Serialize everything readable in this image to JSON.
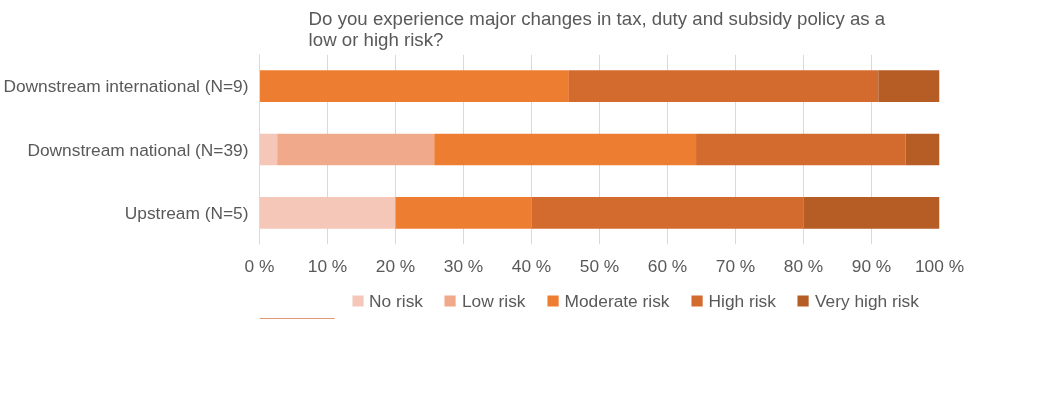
{
  "chart_data": {
    "type": "bar",
    "orientation": "horizontal",
    "stacked": true,
    "title": "Do you experience major changes in tax, duty and subsidy policy  as a low or high risk?",
    "categories": [
      "Downstream international (N=9)",
      "Downstream national (N=39)",
      "Upstream (N=5)"
    ],
    "series": [
      {
        "name": "No risk",
        "color": "#f4c7b8",
        "values": [
          0,
          2.6,
          20
        ]
      },
      {
        "name": "Low risk",
        "color": "#f1a98b",
        "values": [
          0,
          23.1,
          0
        ]
      },
      {
        "name": "Moderate risk",
        "color": "#ed7d31",
        "values": [
          45.5,
          38.5,
          20
        ]
      },
      {
        "name": "High risk",
        "color": "#d46b2e",
        "values": [
          45.5,
          30.8,
          40
        ]
      },
      {
        "name": "Very high risk",
        "color": "#b65d25",
        "values": [
          9,
          5.1,
          20
        ]
      }
    ],
    "xlim": [
      0,
      100
    ],
    "xticks": [
      {
        "value": 0,
        "label": "0 %"
      },
      {
        "value": 10,
        "label": "10 %"
      },
      {
        "value": 20,
        "label": "20 %"
      },
      {
        "value": 30,
        "label": "30 %"
      },
      {
        "value": 40,
        "label": "40 %"
      },
      {
        "value": 50,
        "label": "50 %"
      },
      {
        "value": 60,
        "label": "60 %"
      },
      {
        "value": 70,
        "label": "70 %"
      },
      {
        "value": 80,
        "label": "80 %"
      },
      {
        "value": 90,
        "label": "90 %"
      },
      {
        "value": 100,
        "label": "100 %"
      }
    ],
    "grid": "x",
    "legend": "bottom"
  }
}
